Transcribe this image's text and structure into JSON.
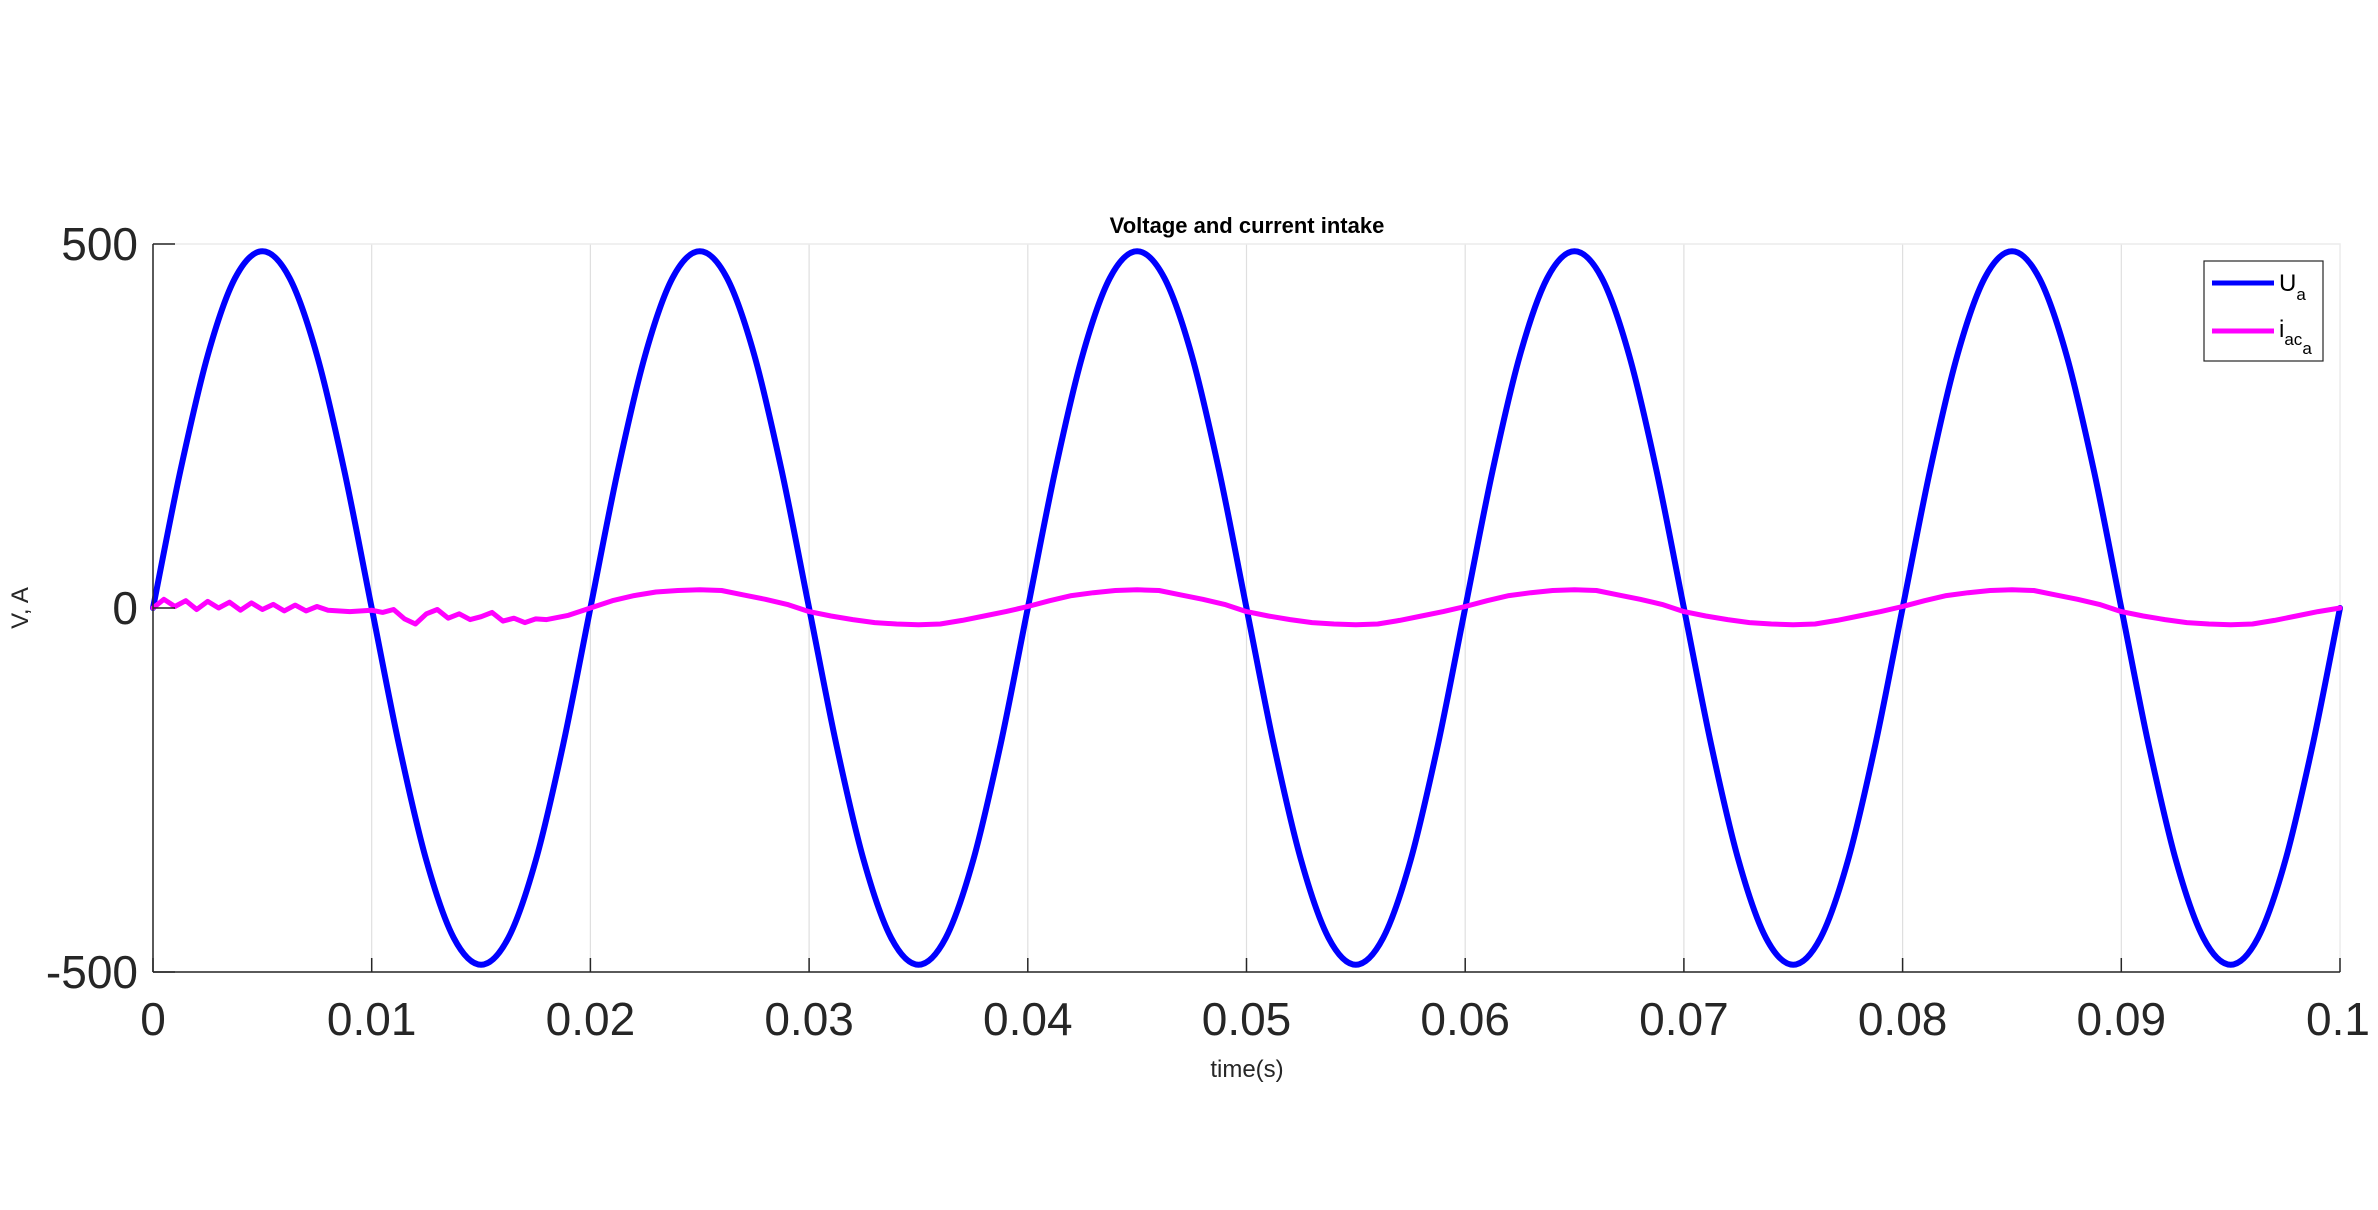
{
  "chart_data": {
    "type": "line",
    "title": "Voltage and current intake",
    "xlabel": "time(s)",
    "ylabel": "V, A",
    "xlim": [
      0,
      0.1
    ],
    "ylim": [
      -500,
      500
    ],
    "xticks": [
      0,
      0.01,
      0.02,
      0.03,
      0.04,
      0.05,
      0.06,
      0.07,
      0.08,
      0.09,
      0.1
    ],
    "xtick_labels": [
      "0",
      "0.01",
      "0.02",
      "0.03",
      "0.04",
      "0.05",
      "0.06",
      "0.07",
      "0.08",
      "0.09",
      "0.1"
    ],
    "yticks": [
      -500,
      0,
      500
    ],
    "ytick_labels": [
      "-500",
      "0",
      "500"
    ],
    "grid": "vertical",
    "legend_position": "top-right",
    "series": [
      {
        "name": "U_a",
        "legend_main": "U",
        "legend_sub": "a",
        "color": "#0000ff",
        "x": [
          0,
          0.00125,
          0.0025,
          0.00375,
          0.005,
          0.00625,
          0.0075,
          0.00875,
          0.01,
          0.01125,
          0.0125,
          0.01375,
          0.015,
          0.01625,
          0.0175,
          0.01875,
          0.02,
          0.02125,
          0.0225,
          0.02375,
          0.025,
          0.02625,
          0.0275,
          0.02875,
          0.03,
          0.03125,
          0.0325,
          0.03375,
          0.035,
          0.03625,
          0.0375,
          0.03875,
          0.04,
          0.04125,
          0.0425,
          0.04375,
          0.045,
          0.04625,
          0.0475,
          0.04875,
          0.05,
          0.05125,
          0.0525,
          0.05375,
          0.055,
          0.05625,
          0.0575,
          0.05875,
          0.06,
          0.06125,
          0.0625,
          0.06375,
          0.065,
          0.06625,
          0.0675,
          0.06875,
          0.07,
          0.07125,
          0.0725,
          0.07375,
          0.075,
          0.07625,
          0.0775,
          0.07875,
          0.08,
          0.08125,
          0.0825,
          0.08375,
          0.085,
          0.08625,
          0.0875,
          0.08875,
          0.09,
          0.09125,
          0.0925,
          0.09375,
          0.095,
          0.09625,
          0.0975,
          0.09875,
          0.1
        ],
        "y": [
          0,
          188,
          347,
          453,
          490,
          453,
          347,
          188,
          0,
          -188,
          -347,
          -453,
          -490,
          -453,
          -347,
          -188,
          0,
          188,
          347,
          453,
          490,
          453,
          347,
          188,
          0,
          -188,
          -347,
          -453,
          -490,
          -453,
          -347,
          -188,
          0,
          188,
          347,
          453,
          490,
          453,
          347,
          188,
          0,
          -188,
          -347,
          -453,
          -490,
          -453,
          -347,
          -188,
          0,
          188,
          347,
          453,
          490,
          453,
          347,
          188,
          0,
          -188,
          -347,
          -453,
          -490,
          -453,
          -347,
          -188,
          0,
          188,
          347,
          453,
          490,
          453,
          347,
          188,
          0,
          -188,
          -347,
          -453,
          -490,
          -453,
          -347,
          -188,
          0
        ]
      },
      {
        "name": "i_ac_a",
        "legend_main": "i",
        "legend_sub": "ac",
        "legend_subsub": "a",
        "color": "#ff00ff",
        "x": [
          0,
          0.0005,
          0.001,
          0.0015,
          0.002,
          0.0025,
          0.003,
          0.0035,
          0.004,
          0.0045,
          0.005,
          0.0055,
          0.006,
          0.0065,
          0.007,
          0.0075,
          0.008,
          0.009,
          0.01,
          0.0105,
          0.011,
          0.0115,
          0.012,
          0.0125,
          0.013,
          0.0135,
          0.014,
          0.0145,
          0.015,
          0.0155,
          0.016,
          0.0165,
          0.017,
          0.0175,
          0.018,
          0.019,
          0.02,
          0.021,
          0.022,
          0.023,
          0.024,
          0.025,
          0.026,
          0.027,
          0.028,
          0.029,
          0.03,
          0.031,
          0.032,
          0.033,
          0.034,
          0.035,
          0.036,
          0.037,
          0.038,
          0.039,
          0.04,
          0.041,
          0.042,
          0.043,
          0.044,
          0.045,
          0.046,
          0.047,
          0.048,
          0.049,
          0.05,
          0.051,
          0.052,
          0.053,
          0.054,
          0.055,
          0.056,
          0.057,
          0.058,
          0.059,
          0.06,
          0.061,
          0.062,
          0.063,
          0.064,
          0.065,
          0.066,
          0.067,
          0.068,
          0.069,
          0.07,
          0.071,
          0.072,
          0.073,
          0.074,
          0.075,
          0.076,
          0.077,
          0.078,
          0.079,
          0.08,
          0.081,
          0.082,
          0.083,
          0.084,
          0.085,
          0.086,
          0.087,
          0.088,
          0.089,
          0.09,
          0.091,
          0.092,
          0.093,
          0.094,
          0.095,
          0.096,
          0.097,
          0.098,
          0.099,
          0.1
        ],
        "y": [
          0,
          12,
          2,
          10,
          -2,
          9,
          0,
          8,
          -3,
          7,
          -2,
          5,
          -4,
          4,
          -4,
          2,
          -3,
          -5,
          -3,
          -6,
          -2,
          -15,
          -22,
          -8,
          -2,
          -14,
          -8,
          -16,
          -12,
          -6,
          -18,
          -14,
          -20,
          -15,
          -16,
          -10,
          0,
          10,
          17,
          22,
          24,
          25,
          24,
          18,
          12,
          5,
          -5,
          -11,
          -16,
          -20,
          -22,
          -23,
          -22,
          -17,
          -11,
          -5,
          2,
          10,
          17,
          21,
          24,
          25,
          24,
          18,
          12,
          5,
          -5,
          -11,
          -16,
          -20,
          -22,
          -23,
          -22,
          -17,
          -11,
          -5,
          2,
          10,
          17,
          21,
          24,
          25,
          24,
          18,
          12,
          5,
          -5,
          -11,
          -16,
          -20,
          -22,
          -23,
          -22,
          -17,
          -11,
          -5,
          2,
          10,
          17,
          21,
          24,
          25,
          24,
          18,
          12,
          5,
          -5,
          -11,
          -16,
          -20,
          -22,
          -23,
          -22,
          -17,
          -11,
          -5,
          0
        ]
      }
    ]
  }
}
